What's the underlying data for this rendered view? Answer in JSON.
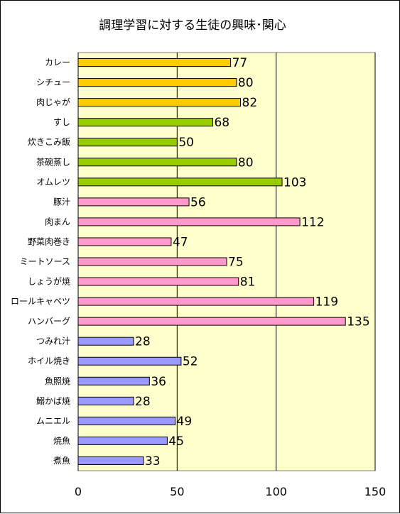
{
  "chart_data": {
    "type": "bar",
    "orientation": "horizontal",
    "title": "調理学習に対する生徒の興味･関心",
    "xlabel": "",
    "ylabel": "",
    "xlim": [
      0,
      150
    ],
    "xticks": [
      "0",
      "50",
      "100",
      "150"
    ],
    "grid": true,
    "legend": "none",
    "colors": {
      "plot_bg": "#ffffcc",
      "yellow": "#ffcc00",
      "green": "#99cc00",
      "pink": "#ff99cc",
      "blue": "#9999ff",
      "grid": "#000000"
    },
    "categories": [
      "カレー",
      "シチュー",
      "肉じゃが",
      "すし",
      "炊きこみ飯",
      "茶碗蒸し",
      "オムレツ",
      "豚汁",
      "肉まん",
      "野菜肉巻き",
      "ミートソース",
      "しょうが焼",
      "ロールキャベツ",
      "ハンバーグ",
      "つみれ汁",
      "ホイル焼き",
      "魚照焼",
      "鰯かば焼",
      "ムニエル",
      "焼魚",
      "煮魚"
    ],
    "values": [
      77,
      80,
      82,
      68,
      50,
      80,
      103,
      56,
      112,
      47,
      75,
      81,
      119,
      135,
      28,
      52,
      36,
      28,
      49,
      45,
      33
    ],
    "value_labels": [
      "77",
      "80",
      "82",
      "68",
      "50",
      "80",
      "103",
      "56",
      "112",
      "47",
      "75",
      "81",
      "119",
      "135",
      "28",
      "52",
      "36",
      "28",
      "49",
      "45",
      "33"
    ],
    "bar_colors": [
      "yellow",
      "yellow",
      "yellow",
      "green",
      "green",
      "green",
      "green",
      "pink",
      "pink",
      "pink",
      "pink",
      "pink",
      "pink",
      "pink",
      "blue",
      "blue",
      "blue",
      "blue",
      "blue",
      "blue",
      "blue"
    ]
  }
}
